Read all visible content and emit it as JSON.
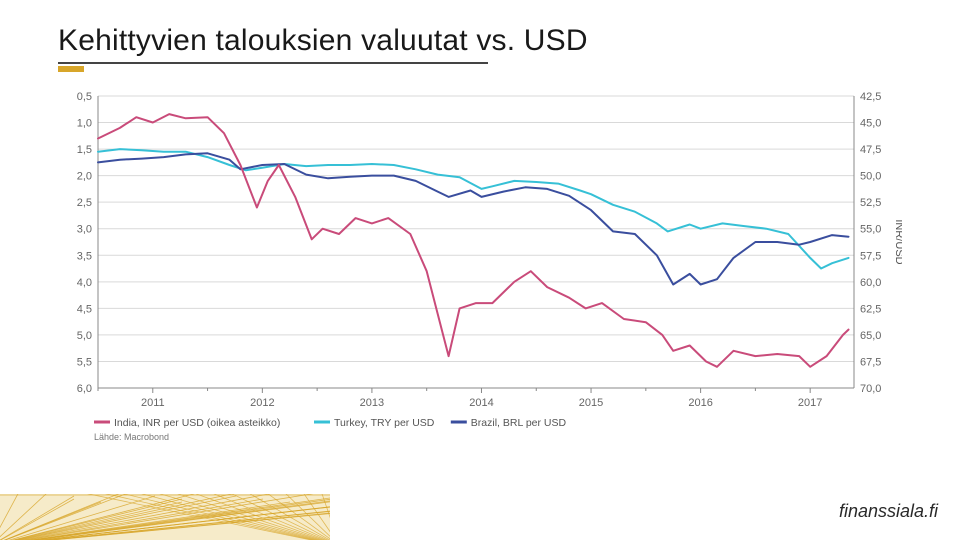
{
  "title": "Kehittyvien talouksien valuutat vs. USD",
  "source_label": "Lähde: Macrobond",
  "footer_brand": "finanssiala.fi",
  "chart": {
    "type": "line",
    "background_color": "#ffffff",
    "grid_color": "#d9d9d9",
    "axis_color": "#888888",
    "text_color": "#666666",
    "x": {
      "years": [
        2011,
        2012,
        2013,
        2014,
        2015,
        2016,
        2017
      ],
      "min": 2010.5,
      "max": 2017.4
    },
    "left_axis": {
      "min": 0.5,
      "max": 6.0,
      "step": 0.5,
      "inverted": true,
      "labels": [
        "0,5",
        "1,0",
        "1,5",
        "2,0",
        "2,5",
        "3,0",
        "3,5",
        "4,0",
        "4,5",
        "5,0",
        "5,5",
        "6,0"
      ]
    },
    "right_axis": {
      "title": "INR/USD",
      "min": 42.5,
      "max": 70.0,
      "step": 2.5,
      "inverted": true,
      "labels": [
        "42,5",
        "45,0",
        "47,5",
        "50,0",
        "52,5",
        "55,0",
        "57,5",
        "60,0",
        "62,5",
        "65,0",
        "67,5",
        "70,0"
      ]
    },
    "series": [
      {
        "name": "Turkey, TRY per USD",
        "axis": "left",
        "color": "#36c0d6",
        "width": 2,
        "data": [
          [
            2010.5,
            1.55
          ],
          [
            2010.7,
            1.5
          ],
          [
            2010.9,
            1.52
          ],
          [
            2011.1,
            1.55
          ],
          [
            2011.3,
            1.55
          ],
          [
            2011.5,
            1.65
          ],
          [
            2011.7,
            1.8
          ],
          [
            2011.85,
            1.9
          ],
          [
            2012.0,
            1.85
          ],
          [
            2012.2,
            1.78
          ],
          [
            2012.4,
            1.82
          ],
          [
            2012.6,
            1.8
          ],
          [
            2012.8,
            1.8
          ],
          [
            2013.0,
            1.78
          ],
          [
            2013.2,
            1.8
          ],
          [
            2013.4,
            1.88
          ],
          [
            2013.6,
            1.98
          ],
          [
            2013.8,
            2.03
          ],
          [
            2014.0,
            2.25
          ],
          [
            2014.1,
            2.2
          ],
          [
            2014.3,
            2.1
          ],
          [
            2014.5,
            2.12
          ],
          [
            2014.7,
            2.15
          ],
          [
            2014.9,
            2.28
          ],
          [
            2015.0,
            2.35
          ],
          [
            2015.2,
            2.55
          ],
          [
            2015.4,
            2.68
          ],
          [
            2015.6,
            2.9
          ],
          [
            2015.7,
            3.05
          ],
          [
            2015.9,
            2.92
          ],
          [
            2016.0,
            3.0
          ],
          [
            2016.2,
            2.9
          ],
          [
            2016.4,
            2.95
          ],
          [
            2016.6,
            3.0
          ],
          [
            2016.8,
            3.1
          ],
          [
            2017.0,
            3.55
          ],
          [
            2017.1,
            3.75
          ],
          [
            2017.2,
            3.65
          ],
          [
            2017.35,
            3.55
          ]
        ]
      },
      {
        "name": "Brazil, BRL per USD",
        "axis": "left",
        "color": "#3a4e9e",
        "width": 2,
        "data": [
          [
            2010.5,
            1.75
          ],
          [
            2010.7,
            1.7
          ],
          [
            2010.9,
            1.68
          ],
          [
            2011.1,
            1.65
          ],
          [
            2011.3,
            1.6
          ],
          [
            2011.5,
            1.58
          ],
          [
            2011.7,
            1.7
          ],
          [
            2011.8,
            1.88
          ],
          [
            2012.0,
            1.8
          ],
          [
            2012.2,
            1.78
          ],
          [
            2012.4,
            1.98
          ],
          [
            2012.6,
            2.05
          ],
          [
            2012.8,
            2.02
          ],
          [
            2013.0,
            2.0
          ],
          [
            2013.2,
            2.0
          ],
          [
            2013.4,
            2.1
          ],
          [
            2013.6,
            2.3
          ],
          [
            2013.7,
            2.4
          ],
          [
            2013.9,
            2.28
          ],
          [
            2014.0,
            2.4
          ],
          [
            2014.2,
            2.3
          ],
          [
            2014.4,
            2.22
          ],
          [
            2014.6,
            2.25
          ],
          [
            2014.8,
            2.38
          ],
          [
            2015.0,
            2.65
          ],
          [
            2015.2,
            3.05
          ],
          [
            2015.4,
            3.1
          ],
          [
            2015.6,
            3.5
          ],
          [
            2015.75,
            4.05
          ],
          [
            2015.9,
            3.85
          ],
          [
            2016.0,
            4.05
          ],
          [
            2016.15,
            3.95
          ],
          [
            2016.3,
            3.55
          ],
          [
            2016.5,
            3.25
          ],
          [
            2016.7,
            3.25
          ],
          [
            2016.9,
            3.3
          ],
          [
            2017.0,
            3.25
          ],
          [
            2017.2,
            3.12
          ],
          [
            2017.35,
            3.15
          ]
        ]
      },
      {
        "name": "India, INR per USD (oikea asteikko)",
        "axis": "right",
        "color": "#c94b7a",
        "width": 2,
        "data": [
          [
            2010.5,
            46.5
          ],
          [
            2010.7,
            45.5
          ],
          [
            2010.85,
            44.5
          ],
          [
            2011.0,
            45.0
          ],
          [
            2011.15,
            44.2
          ],
          [
            2011.3,
            44.6
          ],
          [
            2011.5,
            44.5
          ],
          [
            2011.65,
            46.0
          ],
          [
            2011.8,
            49.0
          ],
          [
            2011.95,
            53.0
          ],
          [
            2012.05,
            50.5
          ],
          [
            2012.15,
            49.0
          ],
          [
            2012.3,
            52.0
          ],
          [
            2012.45,
            56.0
          ],
          [
            2012.55,
            55.0
          ],
          [
            2012.7,
            55.5
          ],
          [
            2012.85,
            54.0
          ],
          [
            2013.0,
            54.5
          ],
          [
            2013.15,
            54.0
          ],
          [
            2013.35,
            55.5
          ],
          [
            2013.5,
            59.0
          ],
          [
            2013.65,
            65.0
          ],
          [
            2013.7,
            67.0
          ],
          [
            2013.8,
            62.5
          ],
          [
            2013.95,
            62.0
          ],
          [
            2014.1,
            62.0
          ],
          [
            2014.3,
            60.0
          ],
          [
            2014.45,
            59.0
          ],
          [
            2014.6,
            60.5
          ],
          [
            2014.8,
            61.5
          ],
          [
            2014.95,
            62.5
          ],
          [
            2015.1,
            62.0
          ],
          [
            2015.3,
            63.5
          ],
          [
            2015.5,
            63.8
          ],
          [
            2015.65,
            65.0
          ],
          [
            2015.75,
            66.5
          ],
          [
            2015.9,
            66.0
          ],
          [
            2016.05,
            67.5
          ],
          [
            2016.15,
            68.0
          ],
          [
            2016.3,
            66.5
          ],
          [
            2016.5,
            67.0
          ],
          [
            2016.7,
            66.8
          ],
          [
            2016.9,
            67.0
          ],
          [
            2017.0,
            68.0
          ],
          [
            2017.15,
            67.0
          ],
          [
            2017.3,
            65.0
          ],
          [
            2017.35,
            64.5
          ]
        ]
      }
    ],
    "legend_order": [
      "India, INR per USD (oikea asteikko)",
      "Turkey, TRY per USD",
      "Brazil, BRL per USD"
    ]
  },
  "footer_decoration": {
    "stroke": "#d8a62a",
    "background": "#e6c763"
  }
}
